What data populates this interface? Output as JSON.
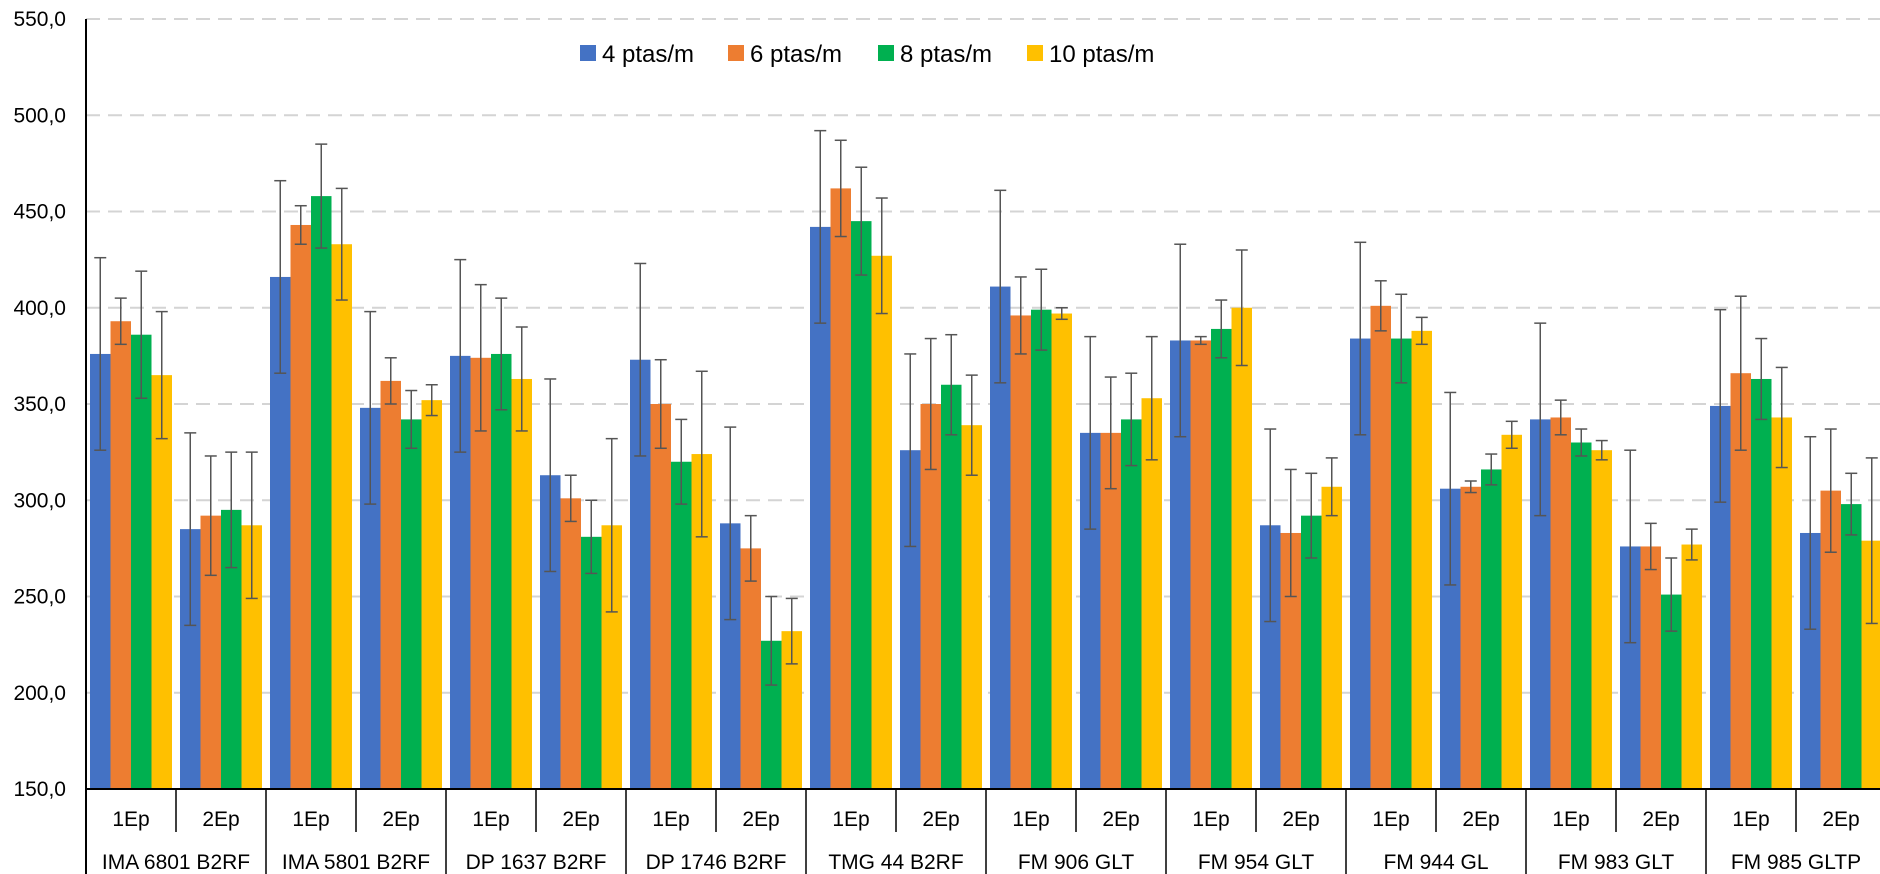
{
  "chart_data": {
    "type": "bar",
    "title": "",
    "xlabel": "",
    "ylabel": "",
    "ylim": [
      150,
      550
    ],
    "yticks": [
      "150,0",
      "200,0",
      "250,0",
      "300,0",
      "350,0",
      "400,0",
      "450,0",
      "500,0",
      "550,0"
    ],
    "grid": true,
    "legend_position": "top-center",
    "hybrids": [
      "IMA 6801 B2RF",
      "IMA 5801 B2RF",
      "DP 1637 B2RF",
      "DP 1746 B2RF",
      "TMG 44 B2RF",
      "FM 906 GLT",
      "FM 954 GLT",
      "FM 944 GL",
      "FM 983 GLT",
      "FM 985 GLTP"
    ],
    "epochs": [
      "1Ep",
      "2Ep"
    ],
    "series": [
      {
        "name": "4 ptas/m",
        "color": "#4472C4",
        "values": [
          376,
          285,
          416,
          348,
          375,
          313,
          373,
          288,
          442,
          326,
          411,
          335,
          383,
          287,
          384,
          306,
          342,
          276,
          349,
          283
        ],
        "errors": [
          50,
          50,
          50,
          50,
          50,
          50,
          50,
          50,
          50,
          50,
          50,
          50,
          50,
          50,
          50,
          50,
          50,
          50,
          50,
          50
        ]
      },
      {
        "name": "6 ptas/m",
        "color": "#ED7D31",
        "values": [
          393,
          292,
          443,
          362,
          374,
          301,
          350,
          275,
          462,
          350,
          396,
          335,
          383,
          283,
          401,
          307,
          343,
          276,
          366,
          305
        ],
        "errors": [
          12,
          31,
          10,
          12,
          38,
          12,
          23,
          17,
          25,
          34,
          20,
          29,
          2,
          33,
          13,
          3,
          9,
          12,
          40,
          32
        ]
      },
      {
        "name": "8 ptas/m",
        "color": "#00B050",
        "values": [
          386,
          295,
          458,
          342,
          376,
          281,
          320,
          227,
          445,
          360,
          399,
          342,
          389,
          292,
          384,
          316,
          330,
          251,
          363,
          298
        ],
        "errors": [
          33,
          30,
          27,
          15,
          29,
          19,
          22,
          23,
          28,
          26,
          21,
          24,
          15,
          22,
          23,
          8,
          7,
          19,
          21,
          16
        ]
      },
      {
        "name": "10 ptas/m",
        "color": "#FFC000",
        "values": [
          365,
          287,
          433,
          352,
          363,
          287,
          324,
          232,
          427,
          339,
          397,
          353,
          400,
          307,
          388,
          334,
          326,
          277,
          343,
          279
        ],
        "errors": [
          33,
          38,
          29,
          8,
          27,
          45,
          43,
          17,
          30,
          26,
          3,
          32,
          30,
          15,
          7,
          7,
          5,
          8,
          26,
          43
        ]
      }
    ]
  }
}
